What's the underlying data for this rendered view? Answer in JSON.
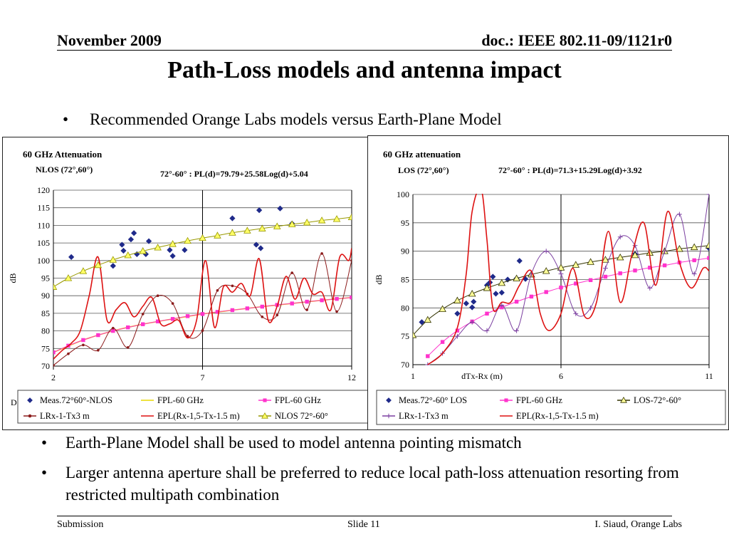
{
  "header": {
    "left": "November 2009",
    "right": "doc.: IEEE 802.11-09/1121r0"
  },
  "title": "Path-Loss models and antenna impact",
  "bullets": {
    "b1": "Recommended Orange Labs models versus Earth-Plane Model",
    "b2": "Earth-Plane Model shall be used to model antenna pointing mismatch",
    "b3": "Larger antenna aperture shall be preferred to reduce local path-loss attenuation  resorting from restricted multipath combination",
    "dot": "•"
  },
  "footer": {
    "left": "Submission",
    "center": "Slide 11",
    "right": "I. Siaud, Orange Labs"
  },
  "chart_data": [
    {
      "type": "scatter",
      "title": "60 GHz Attenuation",
      "subtitle": "NLOS (72°,60°)",
      "annotation": "72°-60° : PL(d)=79.79+25.58Log(d)+5.04",
      "xlabel": "",
      "ylabel": "dB",
      "xlim": [
        2,
        12
      ],
      "ylim": [
        70,
        120
      ],
      "x_ticks": [
        2,
        7,
        12
      ],
      "y_ticks": [
        70,
        75,
        80,
        85,
        90,
        95,
        100,
        105,
        110,
        115,
        120
      ],
      "grid": "horizontal",
      "legend_position": "bottom",
      "legend_clipped_text": "D",
      "series": [
        {
          "name": "Meas.72°60°-NLOS",
          "kind": "markers",
          "marker": "diamond",
          "color": "#1f2a8a",
          "x": [
            2.6,
            4.0,
            4.3,
            4.35,
            4.6,
            4.7,
            4.8,
            5.1,
            5.2,
            5.9,
            6.0,
            6.4,
            8.0,
            8.8,
            8.9,
            8.95,
            9.6,
            10.0
          ],
          "y": [
            101,
            98.5,
            104.5,
            102.8,
            106,
            107.8,
            101.8,
            101.8,
            105.5,
            103,
            101.3,
            103,
            112,
            104.5,
            114.3,
            103.5,
            114.8,
            110.5
          ]
        },
        {
          "name": "FPL-60 GHz",
          "kind": "line",
          "color": "#e8d800",
          "x": [
            2,
            3,
            4,
            5,
            6,
            7,
            8,
            9,
            10,
            11,
            12
          ],
          "y": [
            73.9,
            77.4,
            80.0,
            81.9,
            83.4,
            84.8,
            85.9,
            86.9,
            87.8,
            88.7,
            89.5
          ]
        },
        {
          "name": "FPL-60 GHz",
          "kind": "line-markers",
          "marker": "square",
          "color": "#ff33cc",
          "x": [
            2.0,
            2.5,
            3.0,
            3.5,
            4.0,
            4.5,
            5.0,
            5.5,
            6.0,
            6.5,
            7.0,
            7.5,
            8.0,
            8.5,
            9.0,
            9.5,
            10.0,
            10.5,
            11.0,
            11.5,
            12.0
          ],
          "y": [
            73.9,
            75.8,
            77.4,
            78.8,
            80.0,
            81.0,
            81.9,
            82.7,
            83.4,
            84.2,
            84.8,
            85.4,
            85.9,
            86.4,
            86.9,
            87.4,
            87.8,
            88.3,
            88.7,
            89.1,
            89.5
          ]
        },
        {
          "name": "LRx-1-Tx3 m",
          "kind": "line-markers",
          "marker": "circle",
          "color": "#8b1a1a",
          "x": [
            2.0,
            2.5,
            3.0,
            3.5,
            4.0,
            4.5,
            5.0,
            5.5,
            6.0,
            6.5,
            7.0,
            7.5,
            8.0,
            8.5,
            9.0,
            9.5,
            10.0,
            10.5,
            11.0,
            11.5,
            12.0
          ],
          "y": [
            70.2,
            73.5,
            76,
            74.5,
            80.8,
            75.3,
            84.8,
            90,
            87.8,
            78.5,
            80.1,
            91.5,
            92.8,
            90.5,
            84,
            84.5,
            96.5,
            86,
            102,
            85.5,
            100
          ]
        },
        {
          "name": "EPL(Rx-1,5-Tx-1.5 m)",
          "kind": "line",
          "color": "#dd1111",
          "x": [
            2.0,
            2.3,
            2.6,
            2.9,
            3.2,
            3.5,
            3.8,
            4.1,
            4.4,
            4.7,
            5.0,
            5.3,
            5.6,
            5.9,
            6.2,
            6.5,
            6.8,
            7.1,
            7.4,
            7.7,
            8.0,
            8.3,
            8.6,
            8.9,
            9.2,
            9.5,
            9.8,
            10.1,
            10.4,
            10.7,
            11.0,
            11.3,
            11.6,
            11.9,
            12.0
          ],
          "y": [
            72,
            74.5,
            76.5,
            80,
            90,
            101,
            83,
            86,
            88,
            84,
            87,
            89.5,
            82,
            82,
            83,
            78,
            83,
            100,
            81,
            92.5,
            91,
            93.5,
            90,
            100.5,
            83,
            87,
            95.5,
            89,
            95,
            90.5,
            91,
            86,
            101,
            100,
            103.5
          ]
        },
        {
          "name": "NLOS 72°-60°",
          "kind": "line-markers",
          "marker": "triangle",
          "color": "#999900",
          "fill": "#ffff66",
          "x": [
            2.0,
            2.5,
            3.0,
            3.5,
            4.0,
            4.5,
            5.0,
            5.5,
            6.0,
            6.5,
            7.0,
            7.5,
            8.0,
            8.5,
            9.0,
            9.5,
            10.0,
            10.5,
            11.0,
            11.5,
            12.0
          ],
          "y": [
            92.5,
            95.0,
            97.0,
            98.7,
            100.2,
            101.5,
            102.7,
            103.7,
            104.7,
            105.6,
            106.4,
            107.1,
            107.9,
            108.5,
            109.1,
            109.7,
            110.3,
            110.8,
            111.4,
            111.8,
            112.3
          ]
        }
      ]
    },
    {
      "type": "scatter",
      "title": "60 GHz attenuation",
      "subtitle": "LOS (72°,60°)",
      "annotation": "72°-60° : PL(d)=71.3+15.29Log(d)+3.92",
      "xlabel": "dTx-Rx (m)",
      "ylabel": "dB",
      "xlim": [
        1,
        11
      ],
      "ylim": [
        70,
        100
      ],
      "x_ticks": [
        1,
        6,
        11
      ],
      "y_ticks": [
        70,
        75,
        80,
        85,
        90,
        95,
        100
      ],
      "grid": "horizontal",
      "legend_position": "bottom",
      "series": [
        {
          "name": "Meas.72°-60° LOS",
          "kind": "markers",
          "marker": "diamond",
          "color": "#1f2a8a",
          "x": [
            1.3,
            2.5,
            2.8,
            3.0,
            3.05,
            3.5,
            3.6,
            3.7,
            3.8,
            4.0,
            4.2,
            4.5,
            4.6,
            4.8,
            8.5,
            11.0
          ],
          "y": [
            77.5,
            79,
            80.8,
            80.1,
            81.1,
            84,
            84.5,
            85.5,
            82.5,
            82.7,
            85,
            85.2,
            88.3,
            85.1,
            89.5,
            90.5
          ]
        },
        {
          "name": "FPL-60 GHz",
          "kind": "line-markers",
          "marker": "square",
          "color": "#ff33cc",
          "x": [
            1.5,
            2.0,
            2.5,
            3.0,
            3.5,
            4.0,
            4.5,
            5.0,
            5.5,
            6.0,
            6.5,
            7.0,
            7.5,
            8.0,
            8.5,
            9.0,
            9.5,
            10.0,
            10.5,
            11.0
          ],
          "y": [
            71.5,
            74,
            76,
            77.6,
            79,
            80.1,
            81.1,
            82,
            82.8,
            83.6,
            84.3,
            84.9,
            85.5,
            86.1,
            86.6,
            87.1,
            87.5,
            88,
            88.4,
            88.8
          ]
        },
        {
          "name": "LOS-72°-60°",
          "kind": "line-markers",
          "marker": "triangle",
          "color": "#333300",
          "fill": "#ffff99",
          "x": [
            1.0,
            1.5,
            2.0,
            2.5,
            3.0,
            3.5,
            4.0,
            4.5,
            5.0,
            5.5,
            6.0,
            6.5,
            7.0,
            7.5,
            8.0,
            8.5,
            9.0,
            9.5,
            10.0,
            10.5,
            11.0
          ],
          "y": [
            75.2,
            77.9,
            79.8,
            81.3,
            82.5,
            83.5,
            84.4,
            85.2,
            85.9,
            86.5,
            87.1,
            87.6,
            88.1,
            88.5,
            88.9,
            89.3,
            89.7,
            90.0,
            90.4,
            90.7,
            91.0
          ]
        },
        {
          "name": "LRx-1-Tx3 m",
          "kind": "line-markers",
          "marker": "cross",
          "color": "#7b3fa0",
          "x": [
            1.5,
            2.0,
            2.5,
            3.0,
            3.5,
            4.0,
            4.5,
            5.0,
            5.5,
            6.0,
            6.5,
            7.0,
            7.5,
            8.0,
            8.5,
            9.0,
            9.5,
            10.0,
            10.5,
            11.0
          ],
          "y": [
            70,
            72,
            75,
            77.5,
            76,
            80.5,
            76,
            86,
            90,
            86,
            79,
            80,
            87,
            92.5,
            91,
            83.5,
            90,
            96.5,
            86,
            100
          ]
        },
        {
          "name": "EPL(Rx-1,5-Tx-1.5 m)",
          "kind": "line",
          "color": "#dd1111",
          "x": [
            1.5,
            2.0,
            2.5,
            2.8,
            3.0,
            3.3,
            3.5,
            3.7,
            4.0,
            4.3,
            4.6,
            5.0,
            5.3,
            5.6,
            6.0,
            6.4,
            6.8,
            7.2,
            7.6,
            8.0,
            8.4,
            8.8,
            9.2,
            9.6,
            10.0,
            10.4,
            10.8,
            11.0
          ],
          "y": [
            70,
            72,
            76.5,
            86,
            97,
            101,
            92,
            80,
            81,
            81,
            84,
            86.5,
            79,
            76,
            79,
            87,
            78.5,
            81,
            93.5,
            81,
            89.5,
            95,
            84,
            97,
            88,
            83.5,
            87,
            86.5
          ]
        }
      ]
    }
  ]
}
